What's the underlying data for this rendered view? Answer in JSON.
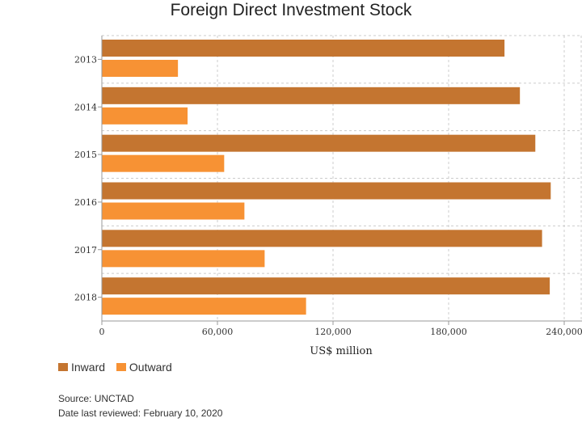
{
  "chart_data": {
    "type": "bar",
    "orientation": "horizontal",
    "title": "Foreign Direct Investment Stock",
    "xlabel": "US$ million",
    "ylabel": "",
    "categories": [
      "2013",
      "2014",
      "2015",
      "2016",
      "2017",
      "2018"
    ],
    "series": [
      {
        "name": "Inward",
        "color": "#C47530",
        "values": [
          209000,
          217000,
          225000,
          233000,
          228500,
          232500
        ]
      },
      {
        "name": "Outward",
        "color": "#F79234",
        "values": [
          39500,
          44500,
          63500,
          74000,
          84500,
          106000
        ]
      }
    ],
    "xlim": [
      0,
      240000
    ],
    "xticks": [
      0,
      60000,
      120000,
      180000,
      240000
    ],
    "xtick_labels": [
      "0",
      "60,000",
      "120,000",
      "180,000",
      "240,000"
    ],
    "grid": true,
    "legend_position": "bottom-left"
  },
  "footer": {
    "source": "Source: UNCTAD",
    "reviewed": "Date last reviewed: February 10, 2020"
  }
}
